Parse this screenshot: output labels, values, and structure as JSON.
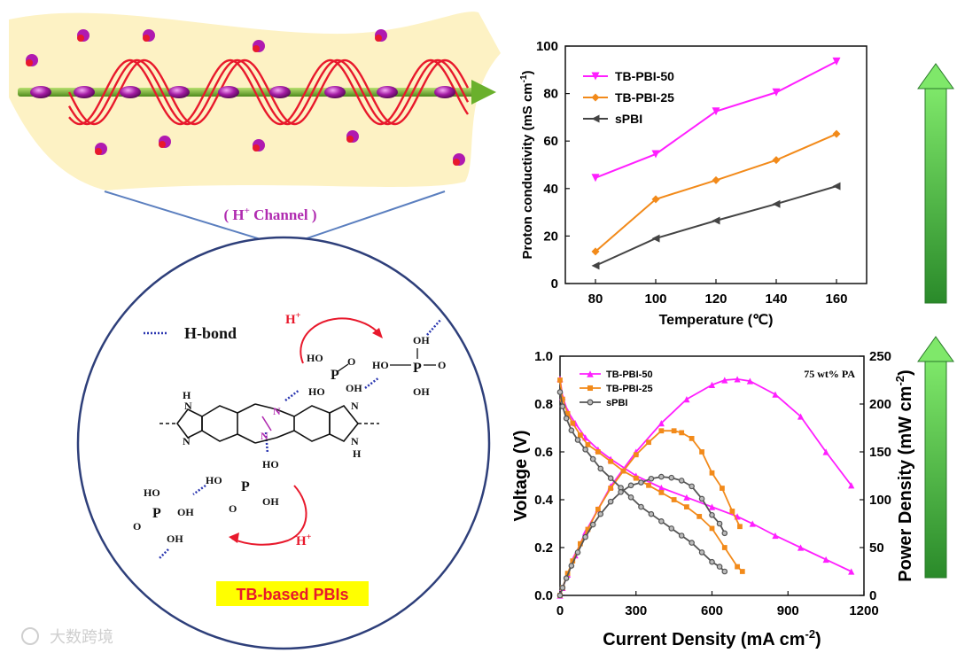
{
  "channel_label": "( H",
  "channel_sup": "+",
  "channel_label_tail": " Channel )",
  "legend_hbond": "H-bond",
  "proton_label": "H",
  "proton_sup": "+",
  "tb_label": "TB-based PBIs",
  "watermark": "大数跨境",
  "colors": {
    "magenta": "#ff1fff",
    "orange": "#f28a1a",
    "black": "#444444",
    "arrow_green": "#3cb53c",
    "yellow_band": "#fdf2c4",
    "helix_red": "#e8192c",
    "tb_label_bg": "#ffff00",
    "tb_label_fg": "#e8192c"
  },
  "chart_data": [
    {
      "type": "line",
      "xlabel": "Temperature (℃)",
      "ylabel": "Proton conductivity (mS cm",
      "ylabel_sup": "-1",
      "ylabel_tail": ")",
      "xlim": [
        70,
        170
      ],
      "ylim": [
        0,
        100
      ],
      "xticks": [
        80,
        100,
        120,
        140,
        160
      ],
      "yticks": [
        0,
        20,
        40,
        60,
        80,
        100
      ],
      "x": [
        80,
        100,
        120,
        140,
        160
      ],
      "legend_position": "top-left",
      "series": [
        {
          "name": "TB-PBI-50",
          "color": "#ff1fff",
          "marker": "tri-down",
          "values": [
            44.5,
            54.5,
            72.5,
            80.5,
            93.5
          ]
        },
        {
          "name": "TB-PBI-25",
          "color": "#f28a1a",
          "marker": "diamond",
          "values": [
            13.5,
            35.5,
            43.5,
            52,
            63
          ]
        },
        {
          "name": "sPBI",
          "color": "#444444",
          "marker": "tri-left",
          "values": [
            7.5,
            19,
            26.5,
            33.5,
            41
          ]
        }
      ]
    },
    {
      "type": "line",
      "xlabel": "Current Density (mA cm",
      "xlabel_sup": "-2",
      "xlabel_tail": ")",
      "ylabel": "Voltage (V)",
      "y2label": "Power Density (mW cm",
      "y2label_sup": "-2",
      "y2label_tail": ")",
      "annotation": "75 wt% PA",
      "xlim": [
        0,
        1200
      ],
      "ylim": [
        0,
        1.0
      ],
      "y2lim": [
        0,
        250
      ],
      "xticks": [
        0,
        300,
        600,
        900,
        1200
      ],
      "yticks": [
        "0.0",
        "0.2",
        "0.4",
        "0.6",
        "0.8",
        "1.0"
      ],
      "y2ticks": [
        0,
        50,
        100,
        150,
        200,
        250
      ],
      "legend_position": "top-left",
      "series": [
        {
          "name": "TB-PBI-50",
          "color": "#ff1fff",
          "marker": "tri-up",
          "voltage": {
            "x": [
              0,
              10,
              30,
              60,
              100,
              150,
              200,
              300,
              400,
              500,
              600,
              700,
              760,
              850,
              950,
              1050,
              1150
            ],
            "y": [
              0.905,
              0.83,
              0.77,
              0.72,
              0.66,
              0.61,
              0.57,
              0.5,
              0.45,
              0.41,
              0.37,
              0.33,
              0.3,
              0.25,
              0.2,
              0.15,
              0.1
            ]
          },
          "power": {
            "x": [
              0,
              10,
              30,
              60,
              100,
              150,
              200,
              300,
              400,
              500,
              600,
              650,
              700,
              750,
              850,
              950,
              1050,
              1150
            ],
            "y": [
              0,
              8,
              22,
              42,
              66,
              90,
              114,
              150,
              180,
              205,
              220,
              225,
              226,
              224,
              210,
              187,
              150,
              115
            ]
          }
        },
        {
          "name": "TB-PBI-25",
          "color": "#f28a1a",
          "marker": "square",
          "voltage": {
            "x": [
              0,
              10,
              30,
              50,
              80,
              110,
              150,
              200,
              250,
              300,
              350,
              400,
              450,
              500,
              550,
              600,
              650,
              700,
              720
            ],
            "y": [
              0.9,
              0.82,
              0.76,
              0.72,
              0.67,
              0.63,
              0.6,
              0.56,
              0.52,
              0.49,
              0.46,
              0.43,
              0.4,
              0.37,
              0.33,
              0.28,
              0.2,
              0.12,
              0.1
            ]
          },
          "power": {
            "x": [
              0,
              10,
              30,
              50,
              80,
              110,
              150,
              200,
              250,
              300,
              350,
              400,
              450,
              480,
              520,
              560,
              600,
              640,
              680,
              710
            ],
            "y": [
              0,
              8,
              23,
              36,
              54,
              69,
              90,
              112,
              130,
              147,
              160,
              172,
              172,
              170,
              164,
              150,
              128,
              112,
              88,
              72
            ]
          }
        },
        {
          "name": "sPBI",
          "color": "#555555",
          "marker": "circle",
          "voltage": {
            "x": [
              0,
              10,
              25,
              45,
              70,
              100,
              130,
              160,
              200,
              240,
              280,
              320,
              360,
              400,
              440,
              480,
              520,
              560,
              600,
              630,
              650
            ],
            "y": [
              0.85,
              0.79,
              0.74,
              0.69,
              0.65,
              0.61,
              0.57,
              0.53,
              0.49,
              0.45,
              0.41,
              0.37,
              0.34,
              0.31,
              0.28,
              0.25,
              0.22,
              0.18,
              0.14,
              0.12,
              0.1
            ]
          },
          "power": {
            "x": [
              0,
              10,
              25,
              45,
              70,
              100,
              130,
              160,
              200,
              240,
              280,
              320,
              360,
              400,
              440,
              480,
              520,
              560,
              600,
              630,
              650
            ],
            "y": [
              0,
              8,
              18,
              31,
              45,
              61,
              74,
              85,
              98,
              108,
              115,
              118,
              122,
              124,
              123,
              120,
              114,
              101,
              84,
              75,
              65
            ]
          }
        }
      ]
    }
  ]
}
